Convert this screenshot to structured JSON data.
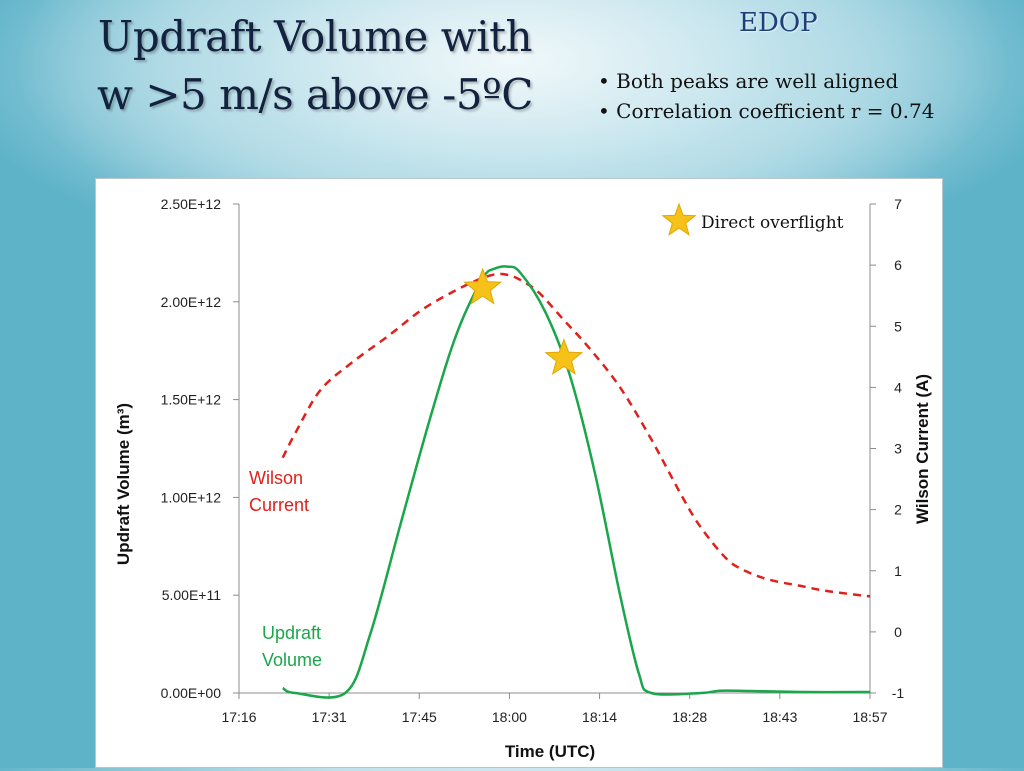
{
  "slide": {
    "title_line1": "Updraft Volume with",
    "title_line2": "w >5 m/s above -5ºC",
    "tag": "EDOP",
    "bullets": [
      "• Both peaks are well aligned",
      "• Correlation coefficient r = 0.74"
    ]
  },
  "chart_data": {
    "type": "line",
    "xlabel": "Time (UTC)",
    "ylabel_left": "Updraft Volume (m³)",
    "ylabel_right": "Wilson Current (A)",
    "x_ticks": [
      "17:16",
      "17:31",
      "17:45",
      "18:00",
      "18:14",
      "18:28",
      "18:43",
      "18:57"
    ],
    "x_range_minutes": [
      1036,
      1137
    ],
    "y_left_ticks": [
      "0.00E+00",
      "5.00E+11",
      "1.00E+12",
      "1.50E+12",
      "2.00E+12",
      "2.50E+12"
    ],
    "y_left_range": [
      0,
      2500000000000.0
    ],
    "y_right_ticks": [
      "-1",
      "0",
      "1",
      "2",
      "3",
      "4",
      "5",
      "6",
      "7"
    ],
    "y_right_range": [
      -1,
      7
    ],
    "series": [
      {
        "name": "Wilson Current",
        "label_lines": [
          "Wilson",
          "Current"
        ],
        "axis": "right",
        "style": "dashed",
        "color": "#e0201b",
        "x_minutes": [
          1043,
          1045,
          1049,
          1054,
          1060,
          1065,
          1070,
          1074,
          1077,
          1079,
          1081,
          1084,
          1088,
          1092,
          1097,
          1102,
          1107,
          1110,
          1114,
          1117,
          1121,
          1126,
          1130,
          1137
        ],
        "values": [
          2.85,
          3.25,
          3.95,
          4.4,
          4.85,
          5.25,
          5.55,
          5.75,
          5.85,
          5.84,
          5.76,
          5.55,
          5.1,
          4.65,
          4.0,
          3.15,
          2.2,
          1.7,
          1.2,
          1.0,
          0.85,
          0.75,
          0.67,
          0.58
        ]
      },
      {
        "name": "Updraft Volume",
        "label_lines": [
          "Updraft",
          "Volume"
        ],
        "axis": "left",
        "style": "solid",
        "color": "#1aa64a",
        "x_minutes": [
          1043,
          1045,
          1053,
          1057,
          1062,
          1067,
          1071,
          1075,
          1077,
          1079,
          1081,
          1085,
          1089,
          1093,
          1097,
          1100,
          1102,
          1110,
          1113,
          1118,
          1127,
          1137
        ],
        "values": [
          25000000000.0,
          0,
          0,
          300000000000.0,
          880000000000.0,
          1450000000000.0,
          1850000000000.0,
          2120000000000.0,
          2170000000000.0,
          2180000000000.0,
          2150000000000.0,
          1950000000000.0,
          1620000000000.0,
          1120000000000.0,
          500000000000.0,
          100000000000.0,
          0,
          0,
          12000000000.0,
          10000000000.0,
          5000000000.0,
          5000000000.0
        ]
      }
    ],
    "annotations": {
      "legend_label": "Direct overflight",
      "overflight_points": [
        {
          "x_minutes": 1075,
          "y": 2070000000000.0
        },
        {
          "x_minutes": 1088,
          "y": 1710000000000.0
        }
      ]
    }
  }
}
